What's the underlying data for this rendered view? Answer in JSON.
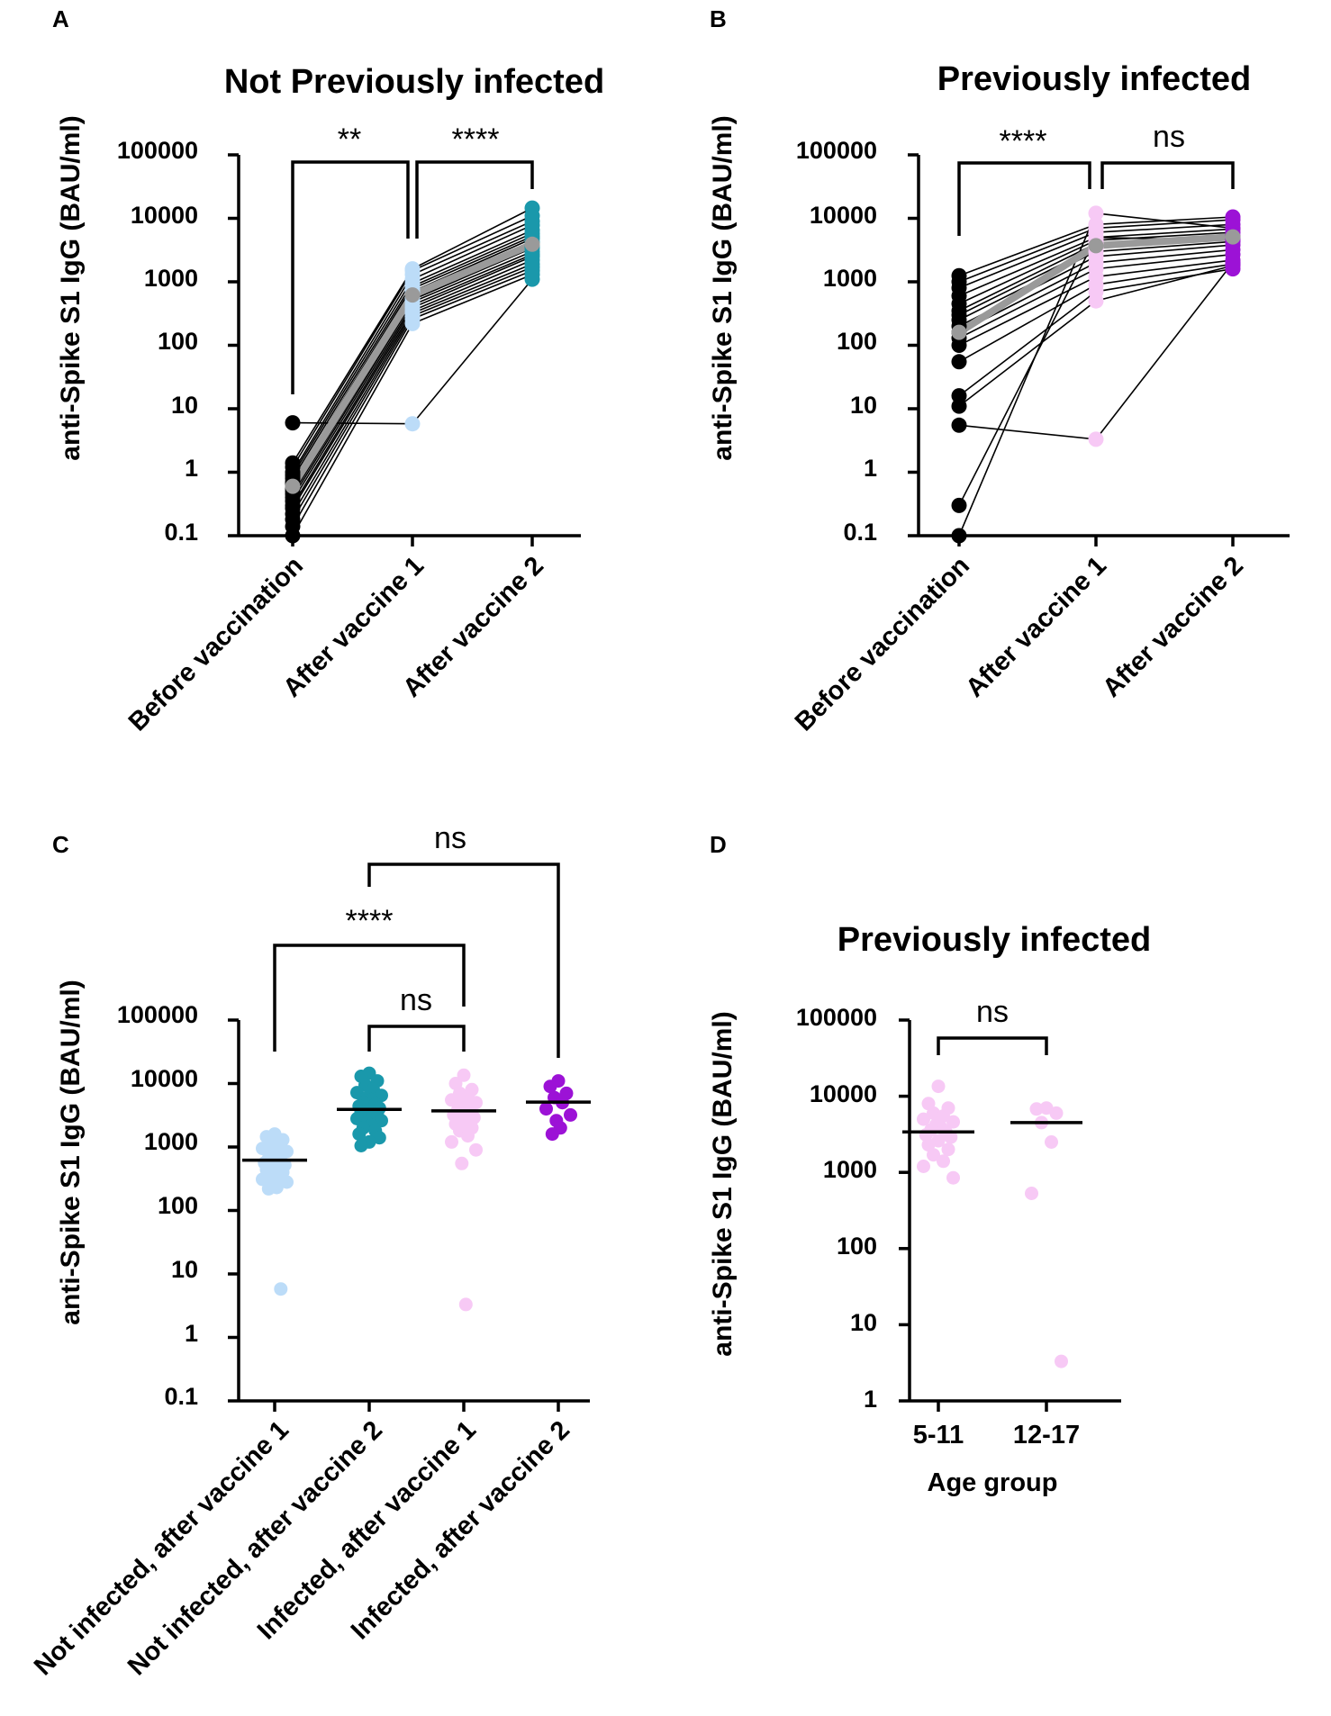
{
  "chart_data": [
    {
      "id": "A",
      "panel_label": "A",
      "type": "paired-scatter",
      "title": "Not Previously infected",
      "ylabel": "anti-Spike S1 IgG (BAU/ml)",
      "yscale": "log",
      "ylim": [
        0.1,
        100000
      ],
      "yticks": [
        "0.1",
        "1",
        "10",
        "100",
        "1000",
        "10000",
        "100000"
      ],
      "categories": [
        "Before vaccination",
        "After vaccine 1",
        "After vaccine 2"
      ],
      "colors": [
        "#000000",
        "#bcdcf8",
        "#1a98ab"
      ],
      "mean_color": "#9a9a9a",
      "subjects": [
        [
          6,
          5.8,
          1100
        ],
        [
          1.4,
          1600,
          14500
        ],
        [
          1.2,
          1500,
          11000
        ],
        [
          1.0,
          1300,
          9000
        ],
        [
          0.9,
          1100,
          7800
        ],
        [
          0.8,
          950,
          6500
        ],
        [
          0.7,
          850,
          5800
        ],
        [
          0.65,
          780,
          5200
        ],
        [
          0.6,
          700,
          4800
        ],
        [
          0.55,
          640,
          4200
        ],
        [
          0.5,
          580,
          3800
        ],
        [
          0.45,
          520,
          3400
        ],
        [
          0.4,
          480,
          3000
        ],
        [
          0.35,
          430,
          2700
        ],
        [
          0.3,
          390,
          2500
        ],
        [
          0.27,
          350,
          2200
        ],
        [
          0.22,
          320,
          1900
        ],
        [
          0.18,
          290,
          1700
        ],
        [
          0.14,
          260,
          1500
        ],
        [
          0.1,
          220,
          1300
        ]
      ],
      "mean": [
        0.6,
        620,
        3900
      ],
      "significance": [
        {
          "from": 0,
          "to": 1,
          "label": "**",
          "style": "sig"
        },
        {
          "from": 1,
          "to": 2,
          "label": "****",
          "style": "sig"
        }
      ]
    },
    {
      "id": "B",
      "panel_label": "B",
      "type": "paired-scatter",
      "title": "Previously infected",
      "ylabel": "anti-Spike S1 IgG (BAU/ml)",
      "yscale": "log",
      "ylim": [
        0.1,
        100000
      ],
      "yticks": [
        "0.1",
        "1",
        "10",
        "100",
        "1000",
        "10000",
        "100000"
      ],
      "categories": [
        "Before vaccination",
        "After vaccine 1",
        "After vaccine 2"
      ],
      "colors": [
        "#000000",
        "#f7c9f5",
        "#9c12d6"
      ],
      "mean_color": "#9a9a9a",
      "subjects": [
        [
          1250,
          8000,
          10500
        ],
        [
          1000,
          7000,
          9500
        ],
        [
          800,
          6000,
          8000
        ],
        [
          600,
          5000,
          6800
        ],
        [
          450,
          4500,
          6000
        ],
        [
          350,
          4000,
          5200
        ],
        [
          300,
          3500,
          4800
        ],
        [
          250,
          3000,
          4300
        ],
        [
          200,
          2500,
          3800
        ],
        [
          160,
          2000,
          3200
        ],
        [
          130,
          1600,
          2700
        ],
        [
          100,
          1200,
          2200
        ],
        [
          55,
          900,
          1900
        ],
        [
          16,
          700,
          1600
        ],
        [
          11,
          500,
          1800
        ],
        [
          5.5,
          3.3,
          2000
        ],
        [
          0.3,
          5000,
          4500
        ],
        [
          0.1,
          12000,
          7000
        ]
      ],
      "mean": [
        160,
        3700,
        5100
      ],
      "significance": [
        {
          "from": 0,
          "to": 1,
          "label": "****",
          "style": "sig"
        },
        {
          "from": 1,
          "to": 2,
          "label": "ns",
          "style": "ns"
        }
      ]
    },
    {
      "id": "C",
      "panel_label": "C",
      "type": "scatter",
      "title": "",
      "ylabel": "anti-Spike S1 IgG (BAU/ml)",
      "yscale": "log",
      "ylim": [
        0.1,
        100000
      ],
      "yticks": [
        "0.1",
        "1",
        "10",
        "100",
        "1000",
        "10000",
        "100000"
      ],
      "categories": [
        "Not infected, after vaccine 1",
        "Not infected, after vaccine 2",
        "Infected, after vaccine 1",
        "Infected, after vaccine 2"
      ],
      "colors": [
        "#bcdcf8",
        "#1a98ab",
        "#f7c9f5",
        "#9c12d6"
      ],
      "groups": [
        [
          1600,
          1450,
          1300,
          1150,
          1050,
          950,
          850,
          780,
          720,
          660,
          600,
          560,
          520,
          480,
          440,
          400,
          370,
          340,
          310,
          280,
          250,
          230,
          220,
          5.8
        ],
        [
          14500,
          13000,
          11000,
          9500,
          8000,
          7200,
          6500,
          6000,
          5500,
          5000,
          4700,
          4400,
          4100,
          3800,
          3600,
          3400,
          3200,
          3000,
          2800,
          2600,
          2400,
          2200,
          2000,
          1800,
          1600,
          1400,
          1200,
          1050
        ],
        [
          13500,
          10000,
          8000,
          7000,
          6000,
          5500,
          5000,
          4600,
          4200,
          3800,
          3500,
          3200,
          2900,
          2600,
          2300,
          2000,
          1800,
          1500,
          1200,
          900,
          550,
          3.3
        ],
        [
          11000,
          9000,
          7000,
          6000,
          5000,
          4000,
          3200,
          2600,
          2000,
          1600
        ]
      ],
      "medians": [
        620,
        3900,
        3700,
        5100
      ],
      "significance": [
        {
          "from": 1,
          "to": 3,
          "label": "ns",
          "style": "ns",
          "level": 3
        },
        {
          "from": 0,
          "to": 2,
          "label": "****",
          "style": "sig",
          "level": 2
        },
        {
          "from": 1,
          "to": 2,
          "label": "ns",
          "style": "ns",
          "level": 1
        }
      ]
    },
    {
      "id": "D",
      "panel_label": "D",
      "type": "scatter",
      "title": "Previously infected",
      "ylabel": "anti-Spike S1 IgG (BAU/ml)",
      "xlabel": "Age group",
      "yscale": "log",
      "ylim": [
        1,
        100000
      ],
      "yticks": [
        "1",
        "10",
        "100",
        "1000",
        "10000",
        "100000"
      ],
      "categories": [
        "5-11",
        "12-17"
      ],
      "colors": [
        "#f7c9f5",
        "#f7c9f5"
      ],
      "groups": [
        [
          13500,
          8000,
          7000,
          6000,
          5500,
          5000,
          4600,
          4200,
          3900,
          3600,
          3400,
          3100,
          2900,
          2600,
          2300,
          2000,
          1700,
          1400,
          1200,
          850
        ],
        [
          7000,
          6800,
          6000,
          4500,
          2500,
          530,
          3.3
        ]
      ],
      "medians": [
        3400,
        4500
      ],
      "significance": [
        {
          "from": 0,
          "to": 1,
          "label": "ns",
          "style": "ns",
          "level": 1
        }
      ]
    }
  ]
}
